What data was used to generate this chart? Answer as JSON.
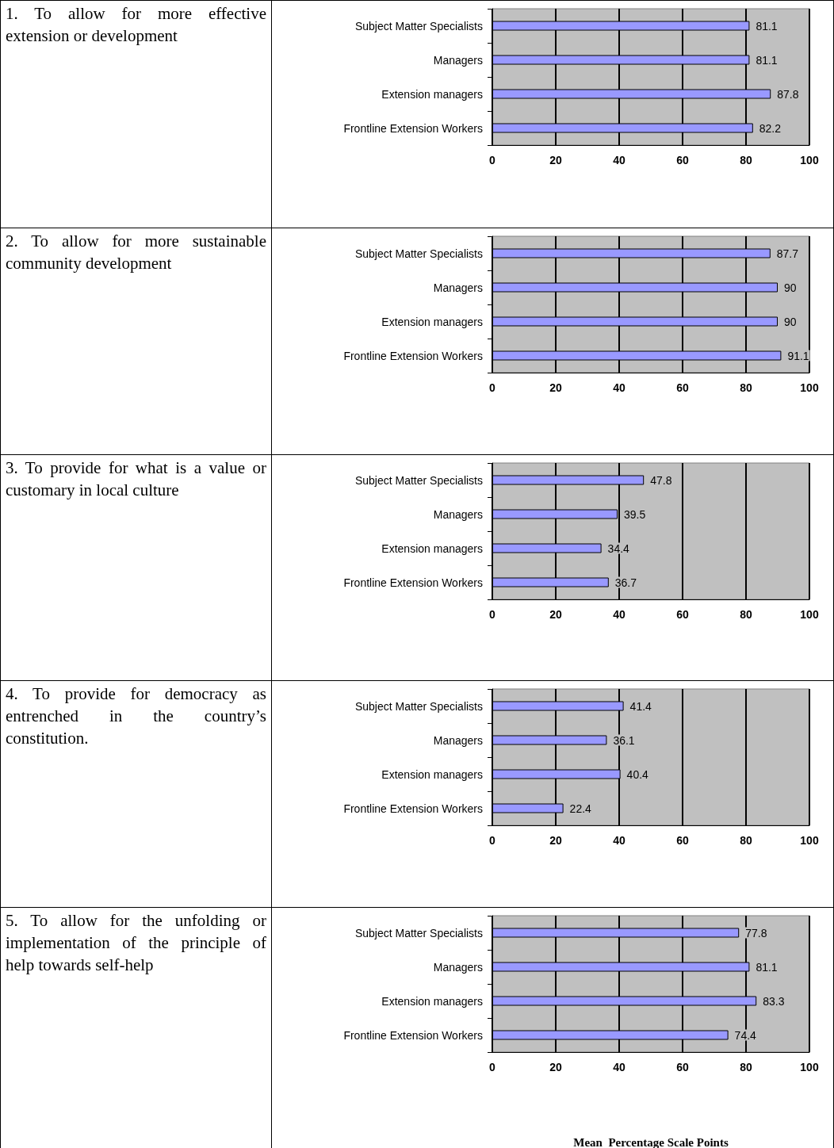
{
  "chart_data": [
    {
      "type": "bar",
      "orientation": "horizontal",
      "title": "1.  To allow for more effective extension or development",
      "categories": [
        "Subject Matter Specialists",
        "Managers",
        "Extension managers",
        "Frontline Extension Workers"
      ],
      "values": [
        81.1,
        81.1,
        87.8,
        82.2
      ],
      "color": "#9999ff",
      "xlim": [
        0,
        100
      ],
      "xticks": [
        0,
        20,
        40,
        60,
        80,
        100
      ],
      "grid": "x",
      "data_labels": true
    },
    {
      "type": "bar",
      "orientation": "horizontal",
      "title": "2.  To allow for more sustainable community development",
      "categories": [
        "Subject Matter Specialists",
        "Managers",
        "Extension managers",
        "Frontline Extension Workers"
      ],
      "values": [
        87.7,
        90,
        90,
        91.1
      ],
      "color": "#9999ff",
      "xlim": [
        0,
        100
      ],
      "xticks": [
        0,
        20,
        40,
        60,
        80,
        100
      ],
      "grid": "x",
      "data_labels": true
    },
    {
      "type": "bar",
      "orientation": "horizontal",
      "title": "3.  To provide for what is a value or customary in local culture",
      "categories": [
        "Subject Matter Specialists",
        "Managers",
        "Extension managers",
        "Frontline Extension Workers"
      ],
      "values": [
        47.8,
        39.5,
        34.4,
        36.7
      ],
      "color": "#9999ff",
      "xlim": [
        0,
        100
      ],
      "xticks": [
        0,
        20,
        40,
        60,
        80,
        100
      ],
      "grid": "x",
      "data_labels": true
    },
    {
      "type": "bar",
      "orientation": "horizontal",
      "title": "4.  To provide for democracy as entrenched in the country’s constitution.",
      "categories": [
        "Subject Matter Specialists",
        "Managers",
        "Extension managers",
        "Frontline Extension Workers"
      ],
      "values": [
        41.4,
        36.1,
        40.4,
        22.4
      ],
      "color": "#9999ff",
      "xlim": [
        0,
        100
      ],
      "xticks": [
        0,
        20,
        40,
        60,
        80,
        100
      ],
      "grid": "x",
      "data_labels": true
    },
    {
      "type": "bar",
      "orientation": "horizontal",
      "title": "5.  To allow for the unfolding or implementation of the principle of help towards self-help",
      "xlabel": "Mean  Percentage Scale Points",
      "categories": [
        "Subject Matter Specialists",
        "Managers",
        "Extension managers",
        "Frontline Extension Workers"
      ],
      "values": [
        77.8,
        81.1,
        83.3,
        74.4
      ],
      "color": "#9999ff",
      "xlim": [
        0,
        100
      ],
      "xticks": [
        0,
        20,
        40,
        60,
        80,
        100
      ],
      "grid": "x",
      "data_labels": true
    }
  ]
}
